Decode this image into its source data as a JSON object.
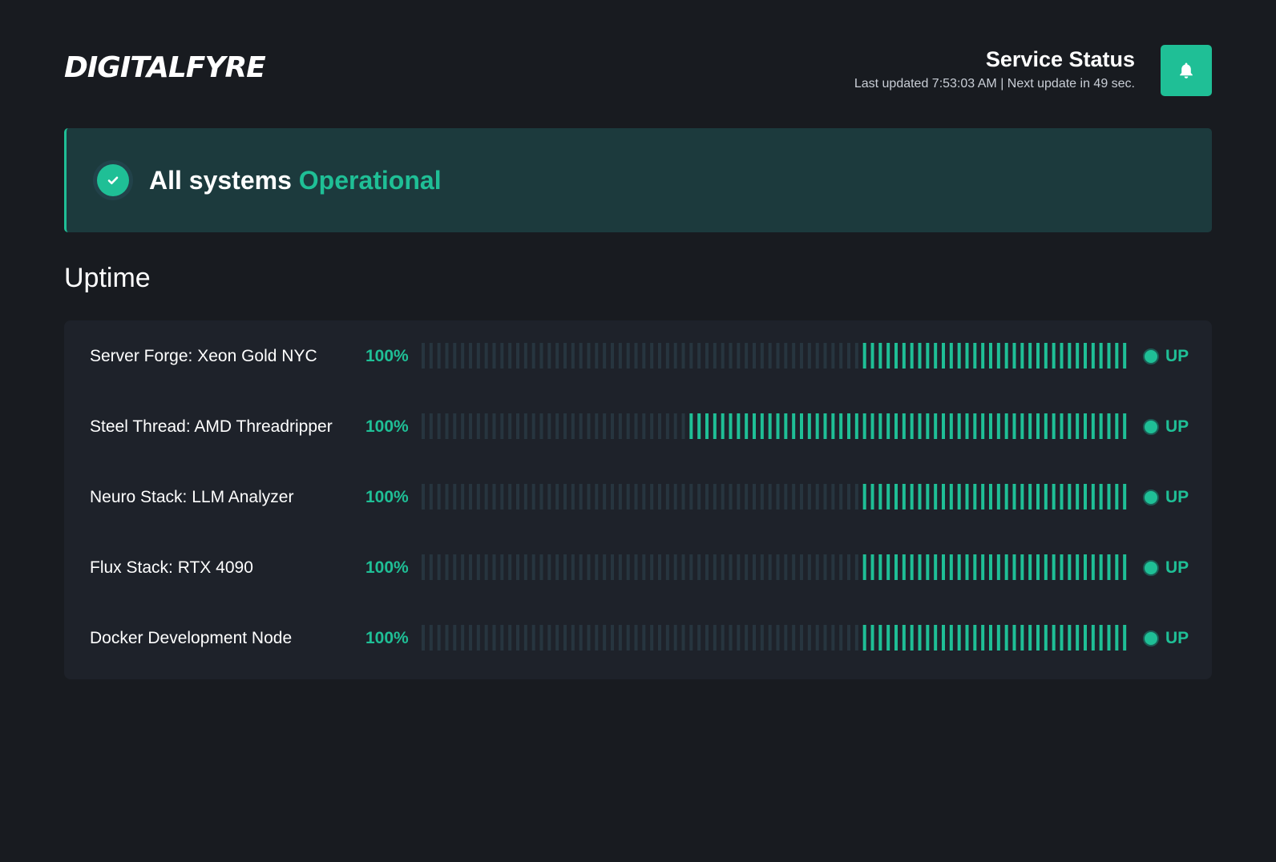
{
  "header": {
    "logo_text": "DIGITALFYRE",
    "title": "Service Status",
    "last_updated": "Last updated 7:53:03 AM | Next update in 49 sec.",
    "bell_icon": "bell-icon"
  },
  "banner": {
    "prefix": "All systems",
    "status": "Operational",
    "icon": "check-circle-icon"
  },
  "uptime": {
    "heading": "Uptime",
    "services": [
      {
        "name": "Server Forge: Xeon Gold NYC",
        "percent": "100%",
        "status": "UP",
        "active_fraction": 0.377
      },
      {
        "name": "Steel Thread: AMD Threadripper",
        "percent": "100%",
        "status": "UP",
        "active_fraction": 0.622
      },
      {
        "name": "Neuro Stack: LLM Analyzer",
        "percent": "100%",
        "status": "UP",
        "active_fraction": 0.377
      },
      {
        "name": "Flux Stack: RTX 4090",
        "percent": "100%",
        "status": "UP",
        "active_fraction": 0.377
      },
      {
        "name": "Docker Development Node",
        "percent": "100%",
        "status": "UP",
        "active_fraction": 0.377
      }
    ]
  },
  "colors": {
    "background": "#181b20",
    "accent": "#1fbf96",
    "inactive_bar": "#27353f",
    "card": "#1e222a",
    "banner": "#1c3a3d"
  }
}
